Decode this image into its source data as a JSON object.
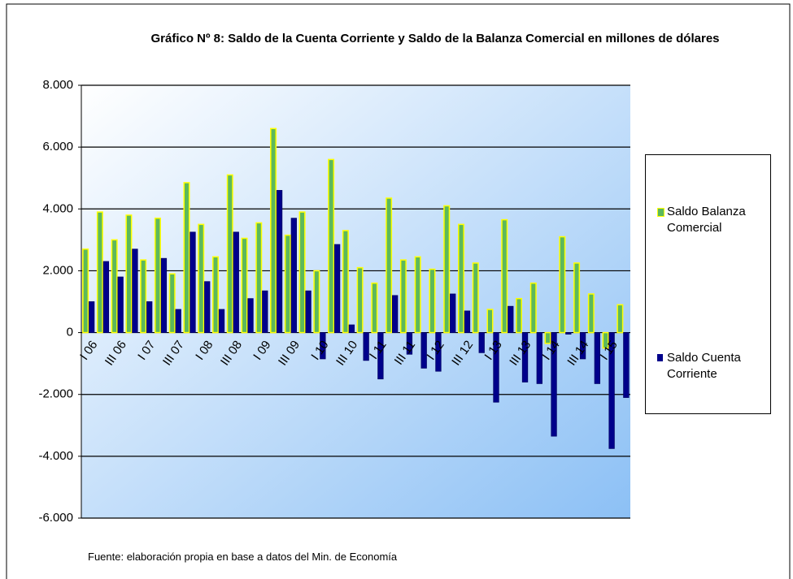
{
  "chart_data": {
    "type": "bar",
    "title": "Gráfico Nº 8:  Saldo de la Cuenta Corriente y Saldo de la Balanza Comercial en millones de dólares",
    "source": "Fuente: elaboración propia en base a datos del Min. de Economía",
    "categories": [
      "I 06",
      null,
      "III 06",
      null,
      "I 07",
      null,
      "III 07",
      null,
      "I 08",
      null,
      "III 08",
      null,
      "I 09",
      null,
      "III 09",
      null,
      "I 10",
      null,
      "III 10",
      null,
      "I 11",
      null,
      "III 11",
      null,
      "I 12",
      null,
      "III 12",
      null,
      "I 13",
      null,
      "III 13",
      null,
      "I 14",
      null,
      "III 14",
      null,
      "I 15",
      null
    ],
    "series": [
      {
        "name": "Saldo Balanza Comercial",
        "color": "#5cb85c",
        "values": [
          2700,
          3900,
          3000,
          3800,
          2350,
          3700,
          1900,
          4850,
          3500,
          2450,
          5100,
          3050,
          3550,
          6600,
          3150,
          3900,
          2000,
          5600,
          3300,
          2100,
          1600,
          4350,
          2350,
          2450,
          2050,
          4100,
          3500,
          2250,
          750,
          3650,
          1100,
          1600,
          -350,
          3100,
          2250,
          1250,
          -500,
          900
        ]
      },
      {
        "name": "Saldo Cuenta Corriente",
        "color": "#00008b",
        "values": [
          1000,
          2300,
          1800,
          2700,
          1000,
          2400,
          750,
          3250,
          1650,
          750,
          3250,
          1100,
          1350,
          4600,
          3700,
          1350,
          -850,
          2850,
          250,
          -900,
          -1500,
          1200,
          -700,
          -1150,
          -1250,
          1250,
          700,
          -650,
          -2250,
          850,
          -1600,
          -1650,
          -3350,
          -50,
          -850,
          -1650,
          -3750,
          -2100
        ]
      }
    ],
    "ylim": [
      -6000,
      8000
    ],
    "yticks": [
      {
        "value": -6000,
        "label": "-6.000"
      },
      {
        "value": -4000,
        "label": "-4.000"
      },
      {
        "value": -2000,
        "label": "-2.000"
      },
      0,
      {
        "value": 2000,
        "label": "2.000"
      },
      {
        "value": 4000,
        "label": "4.000"
      },
      {
        "value": 6000,
        "label": "6.000"
      },
      {
        "value": 8000,
        "label": "8.000"
      }
    ],
    "grid": true
  }
}
